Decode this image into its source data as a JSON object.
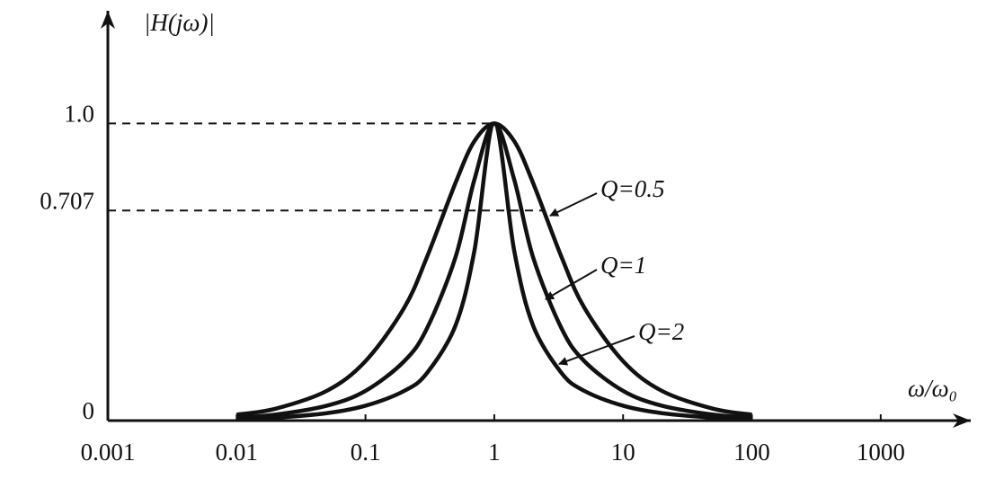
{
  "chart_data": {
    "type": "line",
    "y_label": "|H(jω)|",
    "x_label": "ω/ω₀",
    "log_x": true,
    "x": [
      0.01,
      0.02,
      0.05,
      0.1,
      0.2,
      0.3,
      0.5,
      0.7,
      1,
      1.43,
      2,
      3.33,
      5,
      10,
      20,
      50,
      100
    ],
    "series": [
      {
        "name": "Q=0.5",
        "color": "#111111",
        "values": [
          0.02,
          0.04,
          0.1,
          0.2,
          0.38,
          0.55,
          0.8,
          0.94,
          1,
          0.94,
          0.8,
          0.55,
          0.38,
          0.2,
          0.1,
          0.04,
          0.02
        ]
      },
      {
        "name": "Q=1",
        "color": "#111111",
        "values": [
          0.01,
          0.02,
          0.05,
          0.1,
          0.2,
          0.31,
          0.55,
          0.81,
          1,
          0.81,
          0.55,
          0.31,
          0.2,
          0.1,
          0.05,
          0.02,
          0.01
        ]
      },
      {
        "name": "Q=2",
        "color": "#111111",
        "values": [
          0.005,
          0.01,
          0.025,
          0.05,
          0.1,
          0.16,
          0.32,
          0.57,
          1,
          0.57,
          0.32,
          0.16,
          0.1,
          0.05,
          0.025,
          0.01,
          0.005
        ]
      }
    ],
    "xlim": [
      0.001,
      5000
    ],
    "xticks": [
      0.001,
      0.01,
      0.1,
      1,
      10,
      100,
      1000
    ],
    "ylim": [
      0,
      1.37
    ],
    "yticks": [
      0,
      0.707,
      {
        "value": 1,
        "label": "1.0"
      }
    ],
    "guides": true
  }
}
